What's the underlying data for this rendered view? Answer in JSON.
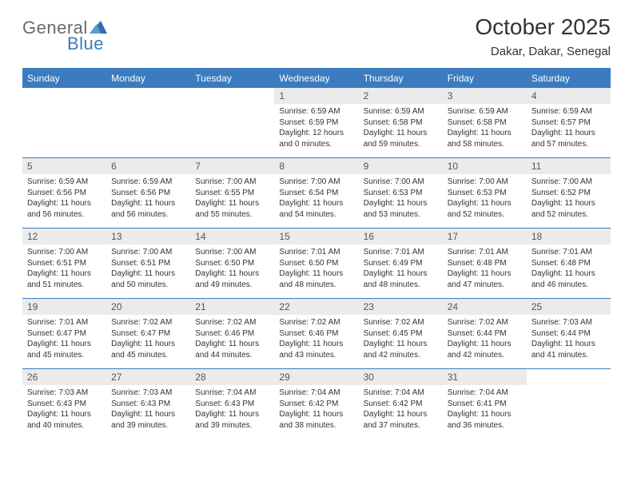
{
  "colors": {
    "header_bg": "#3b7bbf",
    "header_text": "#ffffff",
    "daynum_bg": "#ebebeb",
    "daynum_text": "#555555",
    "body_text": "#333333",
    "row_border": "#3b7bbf",
    "logo_gray": "#6a6a6a",
    "logo_blue": "#3b7bbf",
    "page_bg": "#ffffff"
  },
  "typography": {
    "title_fontsize": 28,
    "subtitle_fontsize": 15,
    "header_fontsize": 12,
    "daynum_fontsize": 12,
    "body_fontsize": 10,
    "logo_fontsize": 22
  },
  "logo": {
    "part1": "General",
    "part2": "Blue"
  },
  "title": "October 2025",
  "subtitle": "Dakar, Dakar, Senegal",
  "weekdays": [
    "Sunday",
    "Monday",
    "Tuesday",
    "Wednesday",
    "Thursday",
    "Friday",
    "Saturday"
  ],
  "layout": {
    "columns": 7,
    "rows": 5,
    "first_weekday_index": 3
  },
  "weeks": [
    [
      null,
      null,
      null,
      {
        "n": "1",
        "sr": "6:59 AM",
        "ss": "6:59 PM",
        "dl": "12 hours and 0 minutes."
      },
      {
        "n": "2",
        "sr": "6:59 AM",
        "ss": "6:58 PM",
        "dl": "11 hours and 59 minutes."
      },
      {
        "n": "3",
        "sr": "6:59 AM",
        "ss": "6:58 PM",
        "dl": "11 hours and 58 minutes."
      },
      {
        "n": "4",
        "sr": "6:59 AM",
        "ss": "6:57 PM",
        "dl": "11 hours and 57 minutes."
      }
    ],
    [
      {
        "n": "5",
        "sr": "6:59 AM",
        "ss": "6:56 PM",
        "dl": "11 hours and 56 minutes."
      },
      {
        "n": "6",
        "sr": "6:59 AM",
        "ss": "6:56 PM",
        "dl": "11 hours and 56 minutes."
      },
      {
        "n": "7",
        "sr": "7:00 AM",
        "ss": "6:55 PM",
        "dl": "11 hours and 55 minutes."
      },
      {
        "n": "8",
        "sr": "7:00 AM",
        "ss": "6:54 PM",
        "dl": "11 hours and 54 minutes."
      },
      {
        "n": "9",
        "sr": "7:00 AM",
        "ss": "6:53 PM",
        "dl": "11 hours and 53 minutes."
      },
      {
        "n": "10",
        "sr": "7:00 AM",
        "ss": "6:53 PM",
        "dl": "11 hours and 52 minutes."
      },
      {
        "n": "11",
        "sr": "7:00 AM",
        "ss": "6:52 PM",
        "dl": "11 hours and 52 minutes."
      }
    ],
    [
      {
        "n": "12",
        "sr": "7:00 AM",
        "ss": "6:51 PM",
        "dl": "11 hours and 51 minutes."
      },
      {
        "n": "13",
        "sr": "7:00 AM",
        "ss": "6:51 PM",
        "dl": "11 hours and 50 minutes."
      },
      {
        "n": "14",
        "sr": "7:00 AM",
        "ss": "6:50 PM",
        "dl": "11 hours and 49 minutes."
      },
      {
        "n": "15",
        "sr": "7:01 AM",
        "ss": "6:50 PM",
        "dl": "11 hours and 48 minutes."
      },
      {
        "n": "16",
        "sr": "7:01 AM",
        "ss": "6:49 PM",
        "dl": "11 hours and 48 minutes."
      },
      {
        "n": "17",
        "sr": "7:01 AM",
        "ss": "6:48 PM",
        "dl": "11 hours and 47 minutes."
      },
      {
        "n": "18",
        "sr": "7:01 AM",
        "ss": "6:48 PM",
        "dl": "11 hours and 46 minutes."
      }
    ],
    [
      {
        "n": "19",
        "sr": "7:01 AM",
        "ss": "6:47 PM",
        "dl": "11 hours and 45 minutes."
      },
      {
        "n": "20",
        "sr": "7:02 AM",
        "ss": "6:47 PM",
        "dl": "11 hours and 45 minutes."
      },
      {
        "n": "21",
        "sr": "7:02 AM",
        "ss": "6:46 PM",
        "dl": "11 hours and 44 minutes."
      },
      {
        "n": "22",
        "sr": "7:02 AM",
        "ss": "6:46 PM",
        "dl": "11 hours and 43 minutes."
      },
      {
        "n": "23",
        "sr": "7:02 AM",
        "ss": "6:45 PM",
        "dl": "11 hours and 42 minutes."
      },
      {
        "n": "24",
        "sr": "7:02 AM",
        "ss": "6:44 PM",
        "dl": "11 hours and 42 minutes."
      },
      {
        "n": "25",
        "sr": "7:03 AM",
        "ss": "6:44 PM",
        "dl": "11 hours and 41 minutes."
      }
    ],
    [
      {
        "n": "26",
        "sr": "7:03 AM",
        "ss": "6:43 PM",
        "dl": "11 hours and 40 minutes."
      },
      {
        "n": "27",
        "sr": "7:03 AM",
        "ss": "6:43 PM",
        "dl": "11 hours and 39 minutes."
      },
      {
        "n": "28",
        "sr": "7:04 AM",
        "ss": "6:43 PM",
        "dl": "11 hours and 39 minutes."
      },
      {
        "n": "29",
        "sr": "7:04 AM",
        "ss": "6:42 PM",
        "dl": "11 hours and 38 minutes."
      },
      {
        "n": "30",
        "sr": "7:04 AM",
        "ss": "6:42 PM",
        "dl": "11 hours and 37 minutes."
      },
      {
        "n": "31",
        "sr": "7:04 AM",
        "ss": "6:41 PM",
        "dl": "11 hours and 36 minutes."
      },
      null
    ]
  ],
  "labels": {
    "sunrise": "Sunrise:",
    "sunset": "Sunset:",
    "daylight": "Daylight:"
  }
}
